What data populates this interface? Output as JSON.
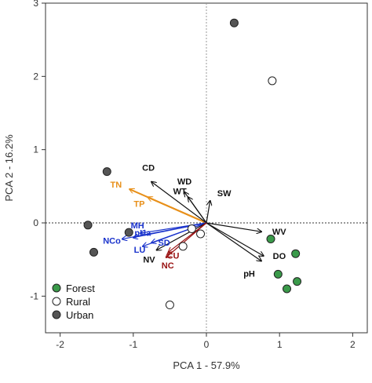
{
  "chart_data": {
    "type": "scatter",
    "xlabel": "PCA 1 - 57.9%",
    "ylabel": "PCA 2 - 16.2%",
    "xlim": [
      -2.2,
      2.2
    ],
    "ylim": [
      -1.5,
      3.0
    ],
    "xticks": [
      -2,
      -1,
      0,
      1,
      2
    ],
    "yticks": [
      -1,
      0,
      1,
      2,
      3
    ],
    "xtick_labels": [
      "-2",
      "-1",
      "0",
      "1",
      "2"
    ],
    "ytick_labels": [
      "-1",
      "0",
      "1",
      "2",
      "3"
    ],
    "grid": false,
    "zero_lines": true,
    "legend_position": "bottom-left",
    "series": [
      {
        "name": "Forest",
        "color": "#3a9a4a",
        "marker": "filled-circle",
        "points": [
          [
            0.88,
            -0.22
          ],
          [
            1.22,
            -0.42
          ],
          [
            0.98,
            -0.7
          ],
          [
            1.1,
            -0.9
          ],
          [
            1.24,
            -0.8
          ]
        ]
      },
      {
        "name": "Rural",
        "color": "#ffffff",
        "marker": "open-circle",
        "points": [
          [
            0.9,
            1.94
          ],
          [
            -0.08,
            -0.15
          ],
          [
            -0.2,
            -0.08
          ],
          [
            -0.32,
            -0.32
          ],
          [
            -0.5,
            -1.12
          ]
        ]
      },
      {
        "name": "Urban",
        "color": "#555555",
        "marker": "filled-circle",
        "points": [
          [
            0.38,
            2.73
          ],
          [
            -1.36,
            0.7
          ],
          [
            -1.62,
            -0.03
          ],
          [
            -1.54,
            -0.4
          ],
          [
            -1.06,
            -0.13
          ]
        ]
      }
    ],
    "vectors": [
      {
        "label": "TN",
        "color": "#e8901a",
        "end": [
          -1.05,
          0.46
        ]
      },
      {
        "label": "TP",
        "color": "#e8901a",
        "end": [
          -0.8,
          0.35
        ]
      },
      {
        "label": "CD",
        "color": "#111111",
        "end": [
          -0.75,
          0.56
        ]
      },
      {
        "label": "WD",
        "color": "#111111",
        "end": [
          -0.3,
          0.42
        ]
      },
      {
        "label": "WT",
        "color": "#111111",
        "end": [
          -0.25,
          0.35
        ]
      },
      {
        "label": "SW",
        "color": "#111111",
        "end": [
          0.05,
          0.3
        ]
      },
      {
        "label": "WV",
        "color": "#111111",
        "end": [
          0.75,
          -0.12
        ]
      },
      {
        "label": "DO",
        "color": "#111111",
        "end": [
          0.78,
          -0.45
        ]
      },
      {
        "label": "pH",
        "color": "#111111",
        "end": [
          0.75,
          -0.52
        ]
      },
      {
        "label": "MH",
        "color": "#1a33cc",
        "end": [
          -0.9,
          -0.14
        ]
      },
      {
        "label": "pHa",
        "color": "#1a33cc",
        "end": [
          -1.0,
          -0.2
        ]
      },
      {
        "label": "SD",
        "color": "#1a33cc",
        "end": [
          -0.75,
          -0.27
        ]
      },
      {
        "label": "NCo",
        "color": "#1a33cc",
        "end": [
          -1.15,
          -0.22
        ]
      },
      {
        "label": "LU",
        "color": "#1a33cc",
        "end": [
          -0.87,
          -0.32
        ]
      },
      {
        "label": "NV",
        "color": "#111111",
        "end": [
          -0.68,
          -0.37
        ]
      },
      {
        "label": "CU",
        "color": "#991111",
        "end": [
          -0.52,
          -0.4
        ]
      },
      {
        "label": "NC",
        "color": "#991111",
        "end": [
          -0.55,
          -0.47
        ]
      }
    ]
  }
}
